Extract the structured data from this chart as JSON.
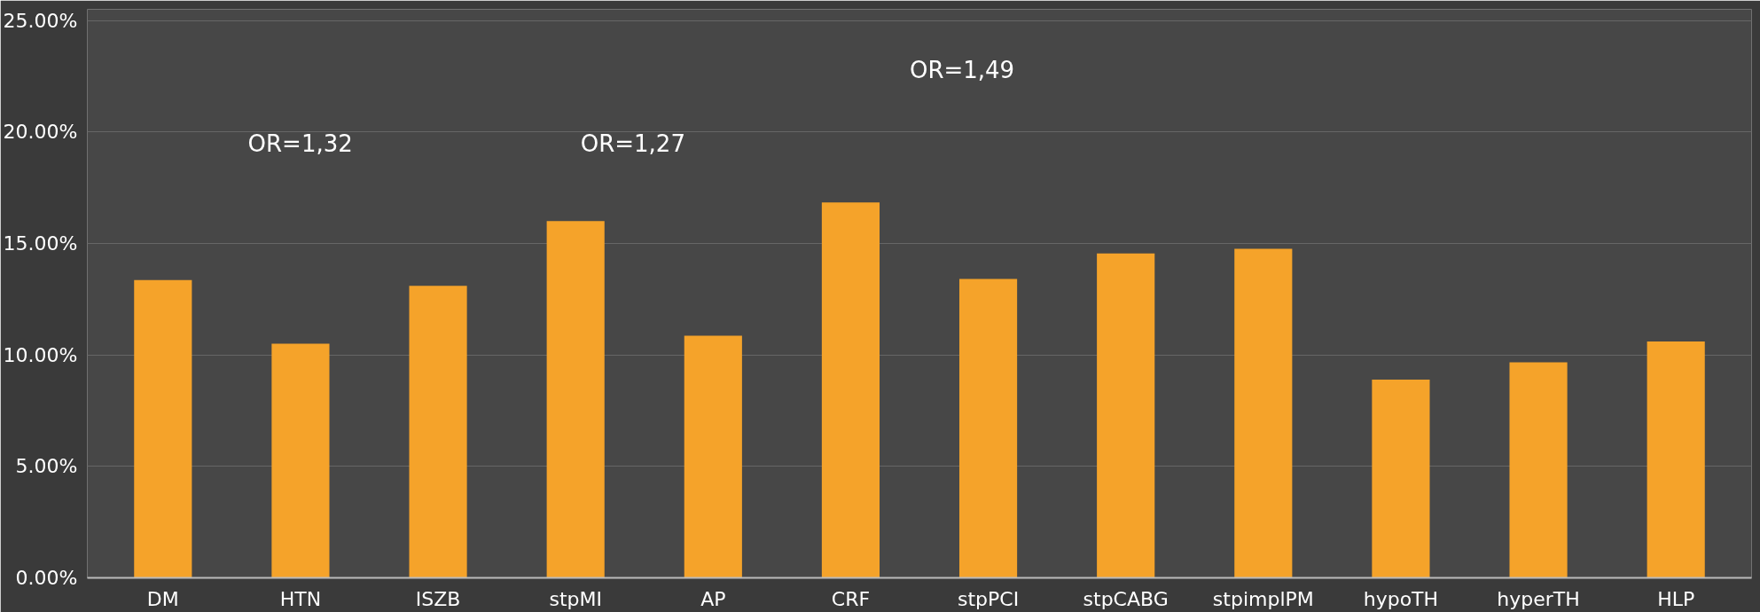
{
  "chart_data": {
    "type": "bar",
    "categories": [
      "DM",
      "HTN",
      "ISZB",
      "stpMI",
      "AP",
      "CRF",
      "stpPCI",
      "stpCABG",
      "stpimplPM",
      "hypoTH",
      "hyperTH",
      "HLP"
    ],
    "values": [
      13.36,
      10.5,
      13.1,
      16.0,
      10.86,
      16.84,
      13.41,
      14.55,
      14.76,
      8.89,
      9.67,
      10.6
    ],
    "color": "#f5a32a",
    "ylim": [
      0,
      25.5
    ],
    "yticks": [
      {
        "value": 0,
        "label": "0.00%"
      },
      {
        "value": 5,
        "label": "5.00%"
      },
      {
        "value": 10,
        "label": "10.00%"
      },
      {
        "value": 15,
        "label": "15.00%"
      },
      {
        "value": 20,
        "label": "20.00%"
      },
      {
        "value": 25,
        "label": "25.00%"
      }
    ],
    "grid": "y",
    "annotations": [
      "OR=1,32",
      "OR=1,27",
      "OR=1,49"
    ]
  }
}
